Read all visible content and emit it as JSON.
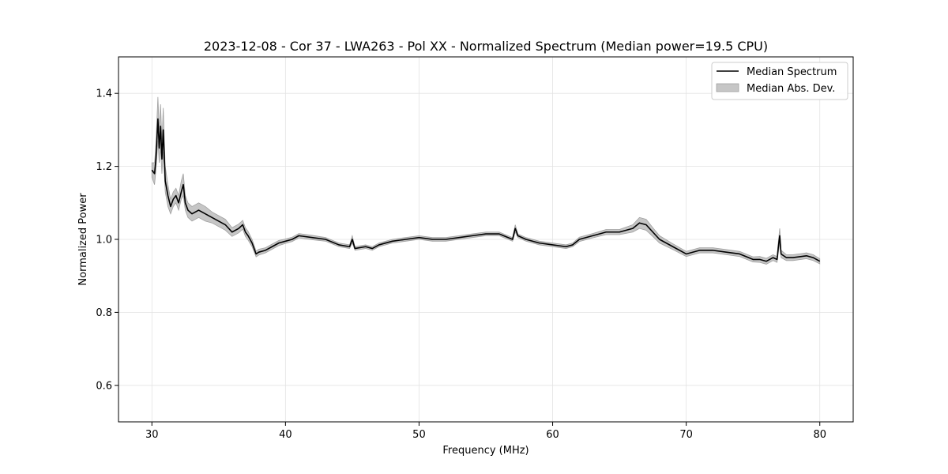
{
  "chart_data": {
    "type": "line",
    "title": "2023-12-08 - Cor 37 - LWA263 - Pol XX - Normalized Spectrum (Median power=19.5 CPU)",
    "xlabel": "Frequency (MHz)",
    "ylabel": "Normalized Power",
    "xlim": [
      27.5,
      82.5
    ],
    "ylim": [
      0.5,
      1.5
    ],
    "xticks": [
      30,
      40,
      50,
      60,
      70,
      80
    ],
    "yticks": [
      0.6,
      0.8,
      1.0,
      1.2,
      1.4
    ],
    "grid": true,
    "legend": {
      "position": "top-right",
      "entries": [
        "Median Spectrum",
        "Median Abs. Dev."
      ]
    },
    "colors": {
      "line": "#000000",
      "band": "#c6c6c6",
      "band_edge": "#a0a0a0",
      "grid": "#e3e3e3"
    },
    "series": [
      {
        "name": "Median Spectrum",
        "x": [
          30,
          30.2,
          30.3,
          30.45,
          30.55,
          30.65,
          30.75,
          30.85,
          31.0,
          31.2,
          31.4,
          31.6,
          31.8,
          32.0,
          32.2,
          32.35,
          32.5,
          32.7,
          33.0,
          33.5,
          34.0,
          34.5,
          35.0,
          35.5,
          36.0,
          36.5,
          36.8,
          37.0,
          37.2,
          37.5,
          37.8,
          38.0,
          38.5,
          39.0,
          39.5,
          40.0,
          40.5,
          41.0,
          42.0,
          43.0,
          44.0,
          44.8,
          45.0,
          45.2,
          46.0,
          46.5,
          47.0,
          48.0,
          49.0,
          50.0,
          51.0,
          52.0,
          53.0,
          54.0,
          55.0,
          56.0,
          57.0,
          57.2,
          57.4,
          58.0,
          59.0,
          60.0,
          61.0,
          61.5,
          62.0,
          63.0,
          64.0,
          65.0,
          66.0,
          66.5,
          67.0,
          67.5,
          68.0,
          69.0,
          70.0,
          71.0,
          72.0,
          73.0,
          74.0,
          75.0,
          75.5,
          76.0,
          76.5,
          76.8,
          76.9,
          77.0,
          77.1,
          77.5,
          78.0,
          79.0,
          79.5,
          80.0
        ],
        "y": [
          1.19,
          1.18,
          1.22,
          1.33,
          1.25,
          1.31,
          1.22,
          1.3,
          1.16,
          1.12,
          1.09,
          1.11,
          1.12,
          1.1,
          1.13,
          1.15,
          1.1,
          1.08,
          1.07,
          1.08,
          1.07,
          1.06,
          1.05,
          1.04,
          1.02,
          1.03,
          1.04,
          1.02,
          1.01,
          0.99,
          0.96,
          0.965,
          0.97,
          0.98,
          0.99,
          0.995,
          1.0,
          1.01,
          1.005,
          1.0,
          0.985,
          0.98,
          1.0,
          0.975,
          0.98,
          0.975,
          0.985,
          0.995,
          1.0,
          1.005,
          1.0,
          1.0,
          1.005,
          1.01,
          1.015,
          1.015,
          1.0,
          1.03,
          1.01,
          1.0,
          0.99,
          0.985,
          0.98,
          0.985,
          1.0,
          1.01,
          1.02,
          1.02,
          1.03,
          1.045,
          1.04,
          1.02,
          1.0,
          0.98,
          0.96,
          0.97,
          0.97,
          0.965,
          0.96,
          0.945,
          0.945,
          0.94,
          0.95,
          0.945,
          0.98,
          1.01,
          0.96,
          0.95,
          0.95,
          0.955,
          0.95,
          0.94
        ]
      },
      {
        "name": "Median Abs. Dev.",
        "x": [
          30,
          30.2,
          30.3,
          30.45,
          30.55,
          30.65,
          30.75,
          30.85,
          31.0,
          31.2,
          31.4,
          31.6,
          31.8,
          32.0,
          32.2,
          32.35,
          32.5,
          32.7,
          33.0,
          33.5,
          34.0,
          34.5,
          35.0,
          35.5,
          36.0,
          36.5,
          36.8,
          37.0,
          37.2,
          37.5,
          37.8,
          38.0,
          38.5,
          39.0,
          39.5,
          40.0,
          40.5,
          41.0,
          42.0,
          43.0,
          44.0,
          44.8,
          45.0,
          45.2,
          46.0,
          46.5,
          47.0,
          48.0,
          49.0,
          50.0,
          51.0,
          52.0,
          53.0,
          54.0,
          55.0,
          56.0,
          57.0,
          57.2,
          57.4,
          58.0,
          59.0,
          60.0,
          61.0,
          61.5,
          62.0,
          63.0,
          64.0,
          65.0,
          66.0,
          66.5,
          67.0,
          67.5,
          68.0,
          69.0,
          70.0,
          71.0,
          72.0,
          73.0,
          74.0,
          75.0,
          75.5,
          76.0,
          76.5,
          76.8,
          76.9,
          77.0,
          77.1,
          77.5,
          78.0,
          79.0,
          79.5,
          80.0
        ],
        "lower": [
          1.17,
          1.15,
          1.19,
          1.27,
          1.21,
          1.25,
          1.18,
          1.24,
          1.13,
          1.09,
          1.07,
          1.09,
          1.1,
          1.08,
          1.11,
          1.12,
          1.08,
          1.06,
          1.05,
          1.06,
          1.05,
          1.045,
          1.035,
          1.025,
          1.008,
          1.018,
          1.028,
          1.008,
          0.998,
          0.98,
          0.952,
          0.957,
          0.963,
          0.973,
          0.983,
          0.989,
          0.994,
          1.004,
          0.999,
          0.995,
          0.98,
          0.975,
          0.99,
          0.97,
          0.975,
          0.97,
          0.98,
          0.99,
          0.995,
          1.0,
          0.995,
          0.995,
          1.0,
          1.005,
          1.01,
          1.01,
          0.995,
          1.02,
          1.005,
          0.995,
          0.985,
          0.98,
          0.975,
          0.98,
          0.994,
          1.004,
          1.013,
          1.013,
          1.02,
          1.03,
          1.025,
          1.008,
          0.99,
          0.972,
          0.953,
          0.963,
          0.963,
          0.958,
          0.953,
          0.938,
          0.937,
          0.932,
          0.942,
          0.937,
          0.965,
          0.99,
          0.95,
          0.942,
          0.942,
          0.947,
          0.942,
          0.933
        ],
        "upper": [
          1.21,
          1.21,
          1.26,
          1.39,
          1.3,
          1.37,
          1.27,
          1.36,
          1.2,
          1.15,
          1.11,
          1.13,
          1.14,
          1.12,
          1.16,
          1.18,
          1.12,
          1.1,
          1.09,
          1.1,
          1.09,
          1.075,
          1.065,
          1.055,
          1.032,
          1.042,
          1.052,
          1.032,
          1.022,
          1.0,
          0.968,
          0.973,
          0.977,
          0.987,
          0.997,
          1.001,
          1.006,
          1.016,
          1.011,
          1.005,
          0.99,
          0.985,
          1.01,
          0.98,
          0.985,
          0.98,
          0.99,
          1.0,
          1.005,
          1.01,
          1.005,
          1.005,
          1.01,
          1.015,
          1.02,
          1.02,
          1.005,
          1.04,
          1.015,
          1.005,
          0.995,
          0.99,
          0.985,
          0.99,
          1.006,
          1.016,
          1.027,
          1.027,
          1.04,
          1.06,
          1.055,
          1.032,
          1.01,
          0.988,
          0.967,
          0.977,
          0.977,
          0.972,
          0.967,
          0.952,
          0.953,
          0.948,
          0.958,
          0.953,
          0.995,
          1.03,
          0.97,
          0.958,
          0.958,
          0.963,
          0.958,
          0.947
        ]
      }
    ]
  }
}
